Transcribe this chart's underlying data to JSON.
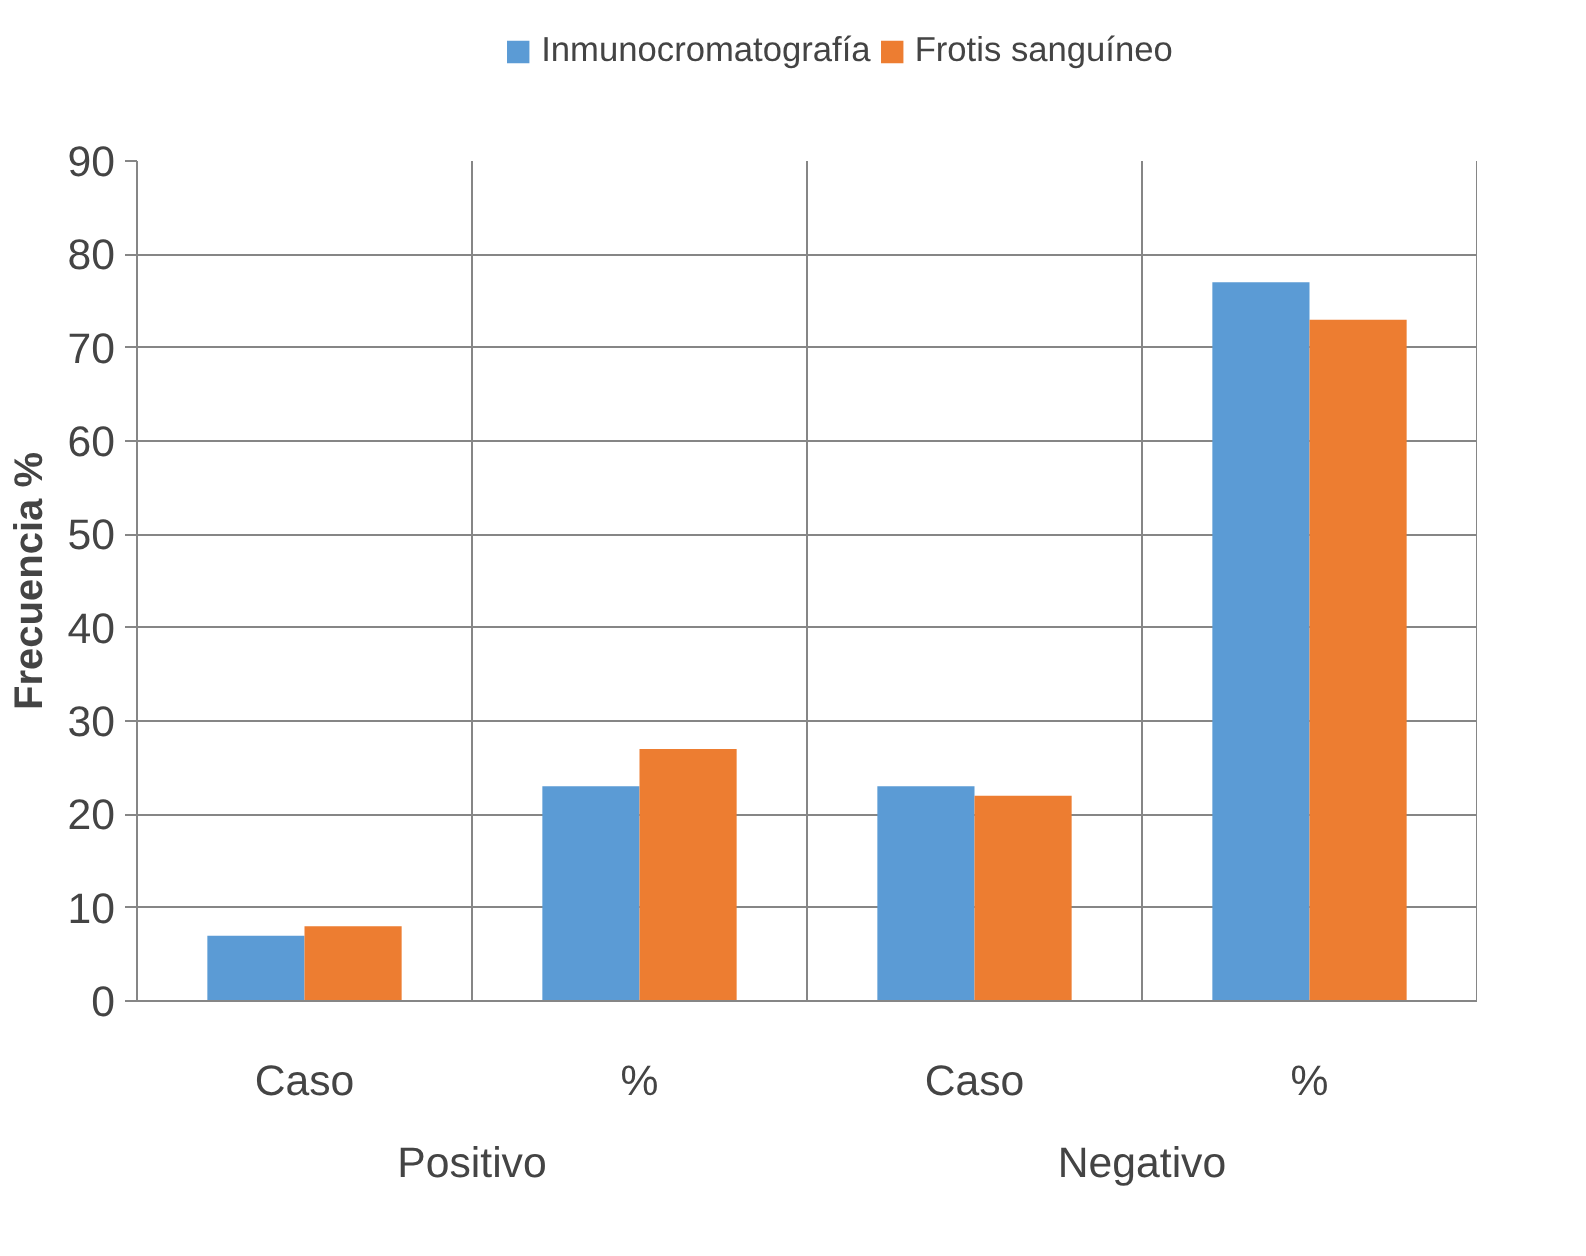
{
  "chart_data": {
    "type": "bar",
    "ylabel": "Frecuencia %",
    "categories": [
      "Caso",
      "%",
      "Caso",
      "%"
    ],
    "annotations": [
      "Positivo",
      "Negativo"
    ],
    "series": [
      {
        "name": "Inmunocromatografía",
        "color": "#5b9bd5",
        "values": [
          7,
          23,
          23,
          77
        ]
      },
      {
        "name": "Frotis sanguíneo",
        "color": "#ed7d31",
        "values": [
          8,
          27,
          22,
          73
        ]
      }
    ],
    "ylim": [
      0,
      90
    ],
    "yticks": [
      0,
      10,
      20,
      30,
      40,
      50,
      60,
      70,
      80,
      90
    ],
    "grid": true,
    "legend": "top"
  }
}
